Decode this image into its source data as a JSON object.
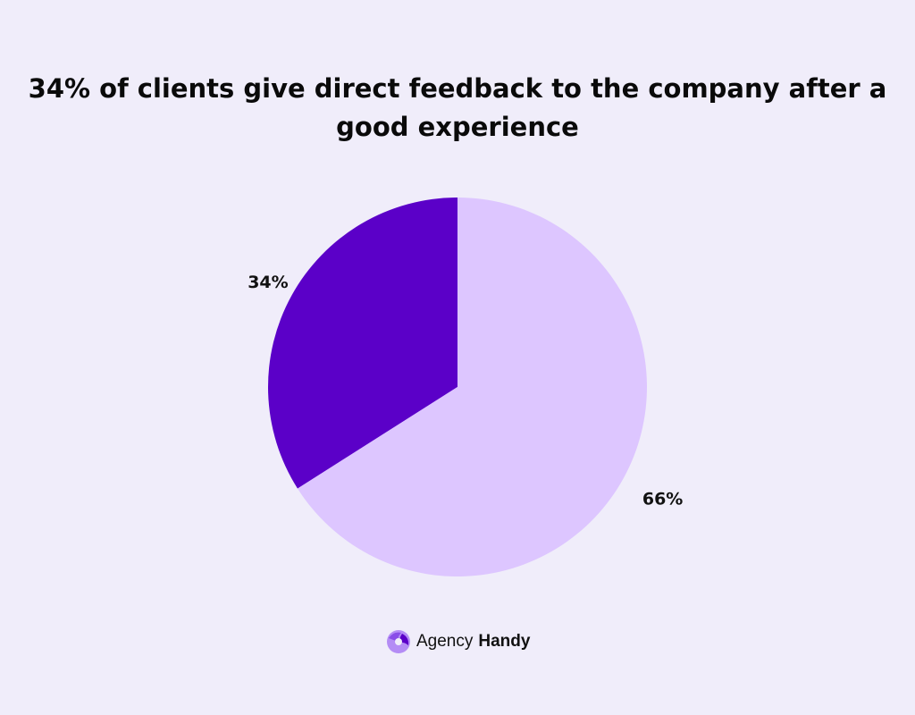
{
  "chart_data": {
    "type": "pie",
    "title": "34% of clients give direct feedback to the company after a good experience",
    "slices": [
      {
        "label": "34%",
        "value": 34,
        "color": "#5b00c8"
      },
      {
        "label": "66%",
        "value": 66,
        "color": "#ddc6ff"
      }
    ],
    "start": "top",
    "direction": "counterclockwise"
  },
  "brand": {
    "name_light": "Agency",
    "name_bold": "Handy"
  }
}
